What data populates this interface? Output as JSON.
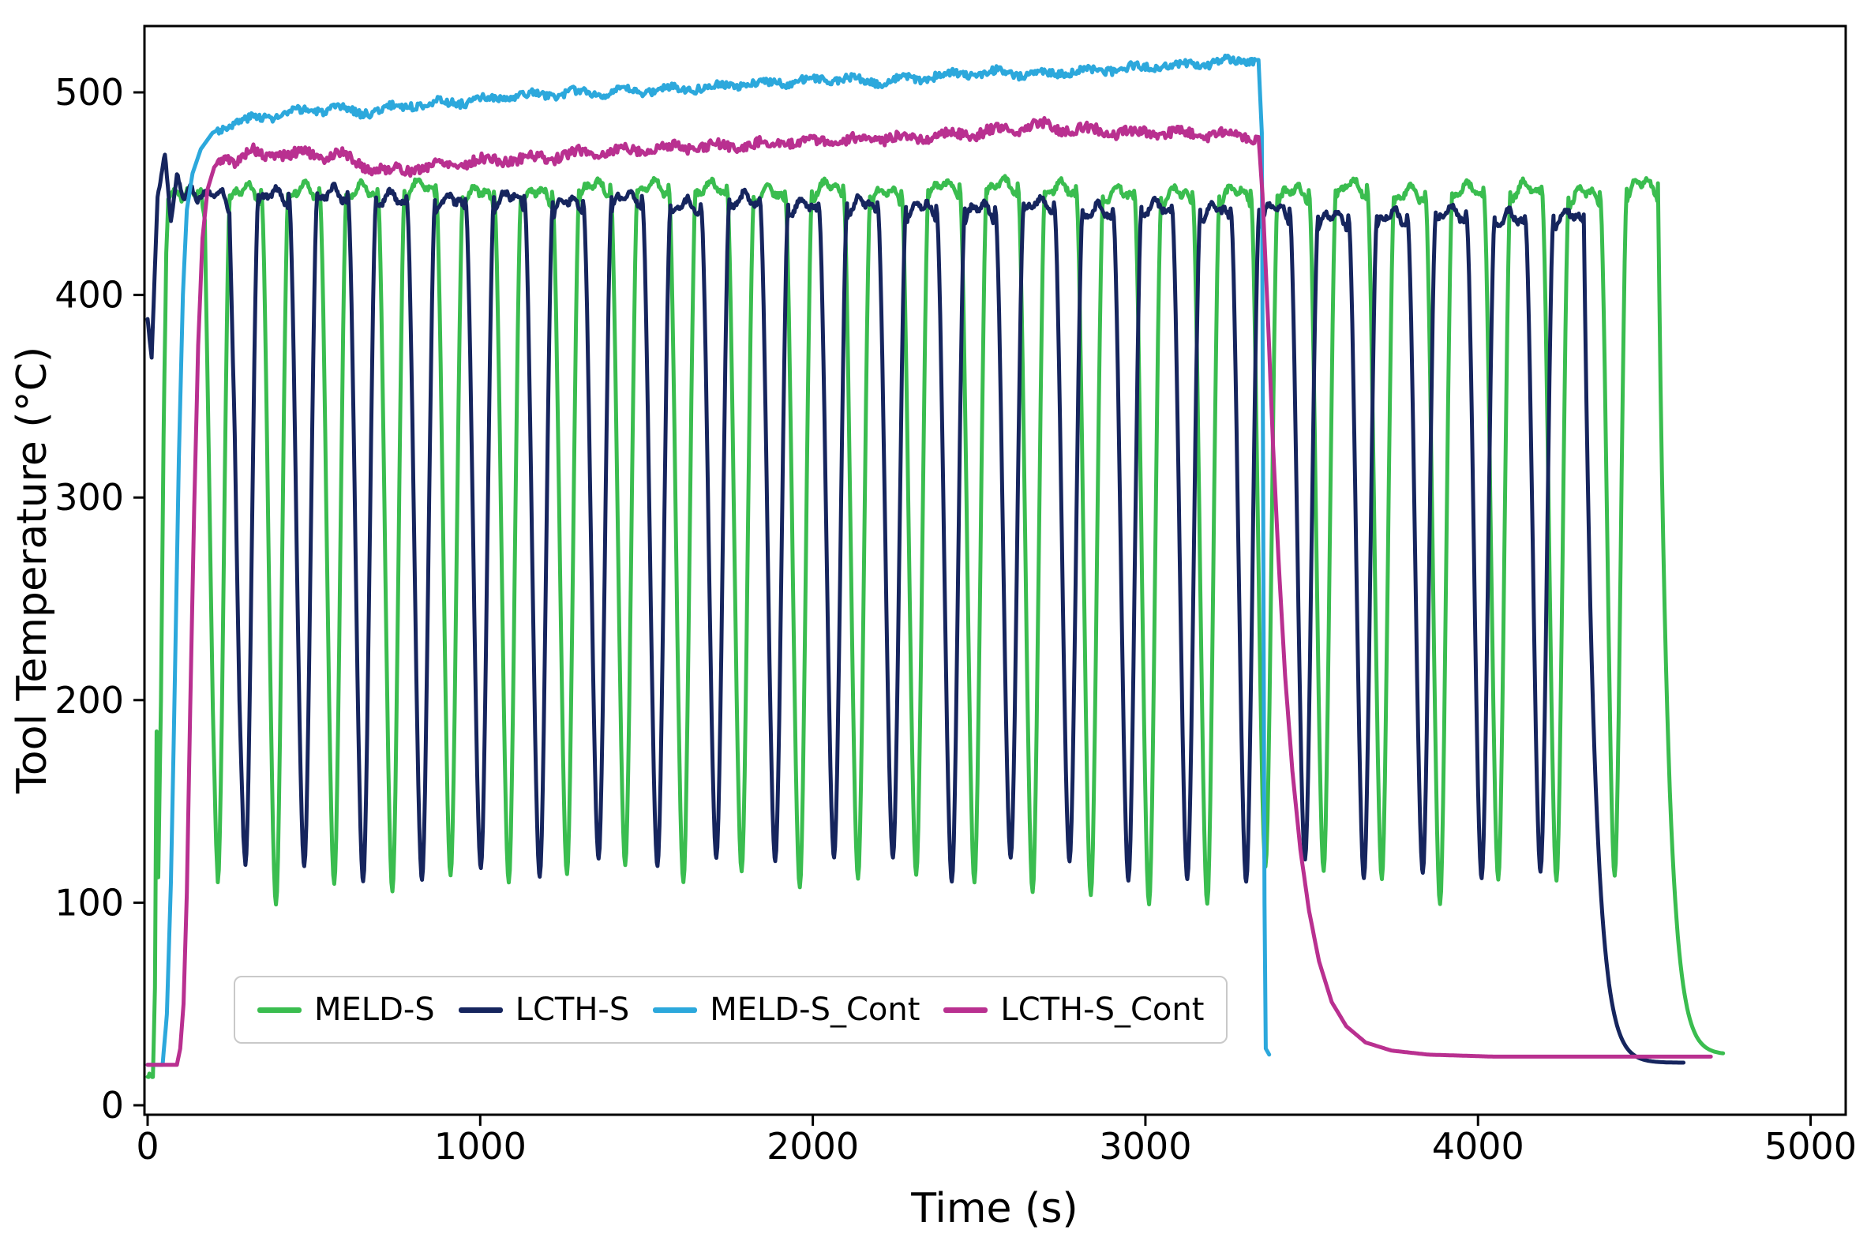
{
  "figure": {
    "background": "#ffffff",
    "axis_color": "#000000"
  },
  "chart_data": {
    "type": "line",
    "title": "",
    "xlabel": "Time (s)",
    "ylabel": "Tool Temperature (°C)",
    "xlim": [
      -10,
      5105
    ],
    "ylim": [
      -5,
      533
    ],
    "xticks": [
      0,
      1000,
      2000,
      3000,
      4000,
      5000
    ],
    "yticks": [
      0,
      100,
      200,
      300,
      400,
      500
    ],
    "grid": false,
    "legend_position": "lower center",
    "series": [
      {
        "name": "MELD-S",
        "color": "#3abd4f",
        "pattern": "cyclic",
        "description": "Intermittent deposition: ~26 thermal cycles, peaks ~453 C plateaus, valleys ~110 C, period ~175 s, from ~60 s to ~4540 s, then exponential cool-down to ~25 C by ~4700 s",
        "preamble": [
          [
            0,
            15
          ],
          [
            16,
            14
          ],
          [
            22,
            58
          ],
          [
            27,
            185
          ],
          [
            32,
            112
          ],
          [
            40,
            200
          ],
          [
            48,
            330
          ],
          [
            56,
            420
          ],
          [
            62,
            448
          ],
          [
            82,
            452
          ],
          [
            102,
            447
          ],
          [
            122,
            453
          ],
          [
            142,
            449
          ],
          [
            160,
            452
          ],
          [
            172,
            436
          ],
          [
            184,
            320
          ],
          [
            196,
            195
          ],
          [
            206,
            128
          ],
          [
            211,
            110
          ]
        ],
        "cyclic": {
          "t_first": 211,
          "period": 175,
          "cycles": 25,
          "rise": 38,
          "high": 92,
          "peak": 453,
          "valley": 109,
          "valley_jitter": 10,
          "peak_drift": 0,
          "decay": {
            "tau": 30,
            "end_temp": 25,
            "tail_until": 4740
          }
        },
        "seed": 7
      },
      {
        "name": "LCTH-S",
        "color": "#16255e",
        "pattern": "cyclic",
        "description": "Intermittent deposition: ~24 thermal cycles, peaks ~450 C declining to ~438 C, valleys ~117 C, period ~177 s, from ~0 s to ~4320 s, then exponential cool-down to ~20 C by ~4600 s",
        "preamble": [
          [
            0,
            388
          ],
          [
            12,
            370
          ],
          [
            30,
            448
          ],
          [
            52,
            470
          ],
          [
            70,
            436
          ],
          [
            88,
            460
          ],
          [
            108,
            447
          ],
          [
            128,
            455
          ],
          [
            150,
            446
          ],
          [
            175,
            452
          ],
          [
            200,
            448
          ],
          [
            225,
            452
          ],
          [
            246,
            440
          ],
          [
            262,
            330
          ],
          [
            276,
            200
          ],
          [
            288,
            132
          ],
          [
            294,
            118
          ]
        ],
        "cyclic": {
          "t_first": 294,
          "period": 177,
          "cycles": 23,
          "rise": 40,
          "high": 90,
          "peak": 450,
          "valley": 117,
          "valley_jitter": 7,
          "peak_drift": -0.5,
          "decay": {
            "tau": 32,
            "end_temp": 21,
            "tail_until": 4620
          }
        },
        "seed": 13
      },
      {
        "name": "MELD-S_Cont",
        "color": "#2ca8dc",
        "pattern": "anchors",
        "description": "Continuous deposition: rapid heat-up at ~60-130 s, slow climb from ~480 C to ~515 C, abrupt drop at ~3350 s",
        "anchors": [
          [
            0,
            20
          ],
          [
            45,
            20
          ],
          [
            58,
            45
          ],
          [
            70,
            110
          ],
          [
            82,
            210
          ],
          [
            94,
            320
          ],
          [
            106,
            400
          ],
          [
            118,
            442
          ],
          [
            135,
            460
          ],
          [
            160,
            472
          ],
          [
            195,
            480
          ],
          [
            250,
            485
          ],
          [
            320,
            487
          ],
          [
            400,
            489
          ],
          [
            480,
            491
          ],
          [
            560,
            492
          ],
          [
            640,
            490
          ],
          [
            720,
            492
          ],
          [
            800,
            494
          ],
          [
            900,
            495
          ],
          [
            1000,
            496
          ],
          [
            1100,
            498
          ],
          [
            1200,
            499
          ],
          [
            1300,
            500
          ],
          [
            1400,
            500
          ],
          [
            1500,
            501
          ],
          [
            1600,
            502
          ],
          [
            1700,
            503
          ],
          [
            1800,
            504
          ],
          [
            1900,
            505
          ],
          [
            2000,
            506
          ],
          [
            2100,
            507
          ],
          [
            2160,
            505
          ],
          [
            2260,
            506
          ],
          [
            2360,
            508
          ],
          [
            2460,
            509
          ],
          [
            2560,
            510
          ],
          [
            2660,
            509
          ],
          [
            2760,
            510
          ],
          [
            2860,
            511
          ],
          [
            2960,
            512
          ],
          [
            3060,
            513
          ],
          [
            3160,
            514
          ],
          [
            3240,
            515
          ],
          [
            3340,
            516
          ],
          [
            3350,
            480
          ],
          [
            3354,
            300
          ],
          [
            3358,
            100
          ],
          [
            3362,
            28
          ],
          [
            3372,
            25
          ]
        ],
        "noise": {
          "amp": 2.0,
          "from": 210,
          "to": 3330
        },
        "seed": 3
      },
      {
        "name": "LCTH-S_Cont",
        "color": "#b93090",
        "pattern": "anchors",
        "description": "Continuous deposition: rapid heat-up at ~100-180 s, plateau ~465-480 C slowly rising, exponential cool-down from ~3350 s to ~24 C tail until ~4700 s",
        "anchors": [
          [
            0,
            20
          ],
          [
            88,
            20
          ],
          [
            98,
            28
          ],
          [
            108,
            50
          ],
          [
            118,
            105
          ],
          [
            128,
            195
          ],
          [
            140,
            295
          ],
          [
            152,
            375
          ],
          [
            165,
            428
          ],
          [
            180,
            452
          ],
          [
            200,
            463
          ],
          [
            230,
            469
          ],
          [
            270,
            466
          ],
          [
            310,
            471
          ],
          [
            350,
            468
          ],
          [
            390,
            471
          ],
          [
            430,
            468
          ],
          [
            470,
            471
          ],
          [
            520,
            468
          ],
          [
            570,
            470
          ],
          [
            620,
            466
          ],
          [
            670,
            463
          ],
          [
            720,
            461
          ],
          [
            770,
            462
          ],
          [
            830,
            463
          ],
          [
            900,
            465
          ],
          [
            1000,
            466
          ],
          [
            1100,
            467
          ],
          [
            1200,
            468
          ],
          [
            1300,
            470
          ],
          [
            1400,
            471
          ],
          [
            1500,
            472
          ],
          [
            1600,
            473
          ],
          [
            1700,
            473
          ],
          [
            1800,
            474
          ],
          [
            1900,
            475
          ],
          [
            2000,
            476
          ],
          [
            2100,
            476
          ],
          [
            2200,
            477
          ],
          [
            2300,
            478
          ],
          [
            2400,
            479
          ],
          [
            2500,
            480
          ],
          [
            2600,
            482
          ],
          [
            2700,
            484
          ],
          [
            2760,
            482
          ],
          [
            2860,
            481
          ],
          [
            2960,
            480
          ],
          [
            3060,
            480
          ],
          [
            3160,
            479
          ],
          [
            3260,
            480
          ],
          [
            3340,
            478
          ],
          [
            3352,
            450
          ],
          [
            3368,
            390
          ],
          [
            3384,
            325
          ],
          [
            3400,
            270
          ],
          [
            3420,
            212
          ],
          [
            3442,
            165
          ],
          [
            3466,
            126
          ],
          [
            3492,
            96
          ],
          [
            3522,
            71
          ],
          [
            3560,
            51
          ],
          [
            3604,
            39
          ],
          [
            3662,
            31
          ],
          [
            3740,
            27
          ],
          [
            3850,
            25
          ],
          [
            4050,
            24
          ],
          [
            4350,
            24
          ],
          [
            4700,
            24
          ]
        ],
        "noise": {
          "amp": 2.5,
          "from": 210,
          "to": 3330
        },
        "seed": 5
      }
    ]
  }
}
